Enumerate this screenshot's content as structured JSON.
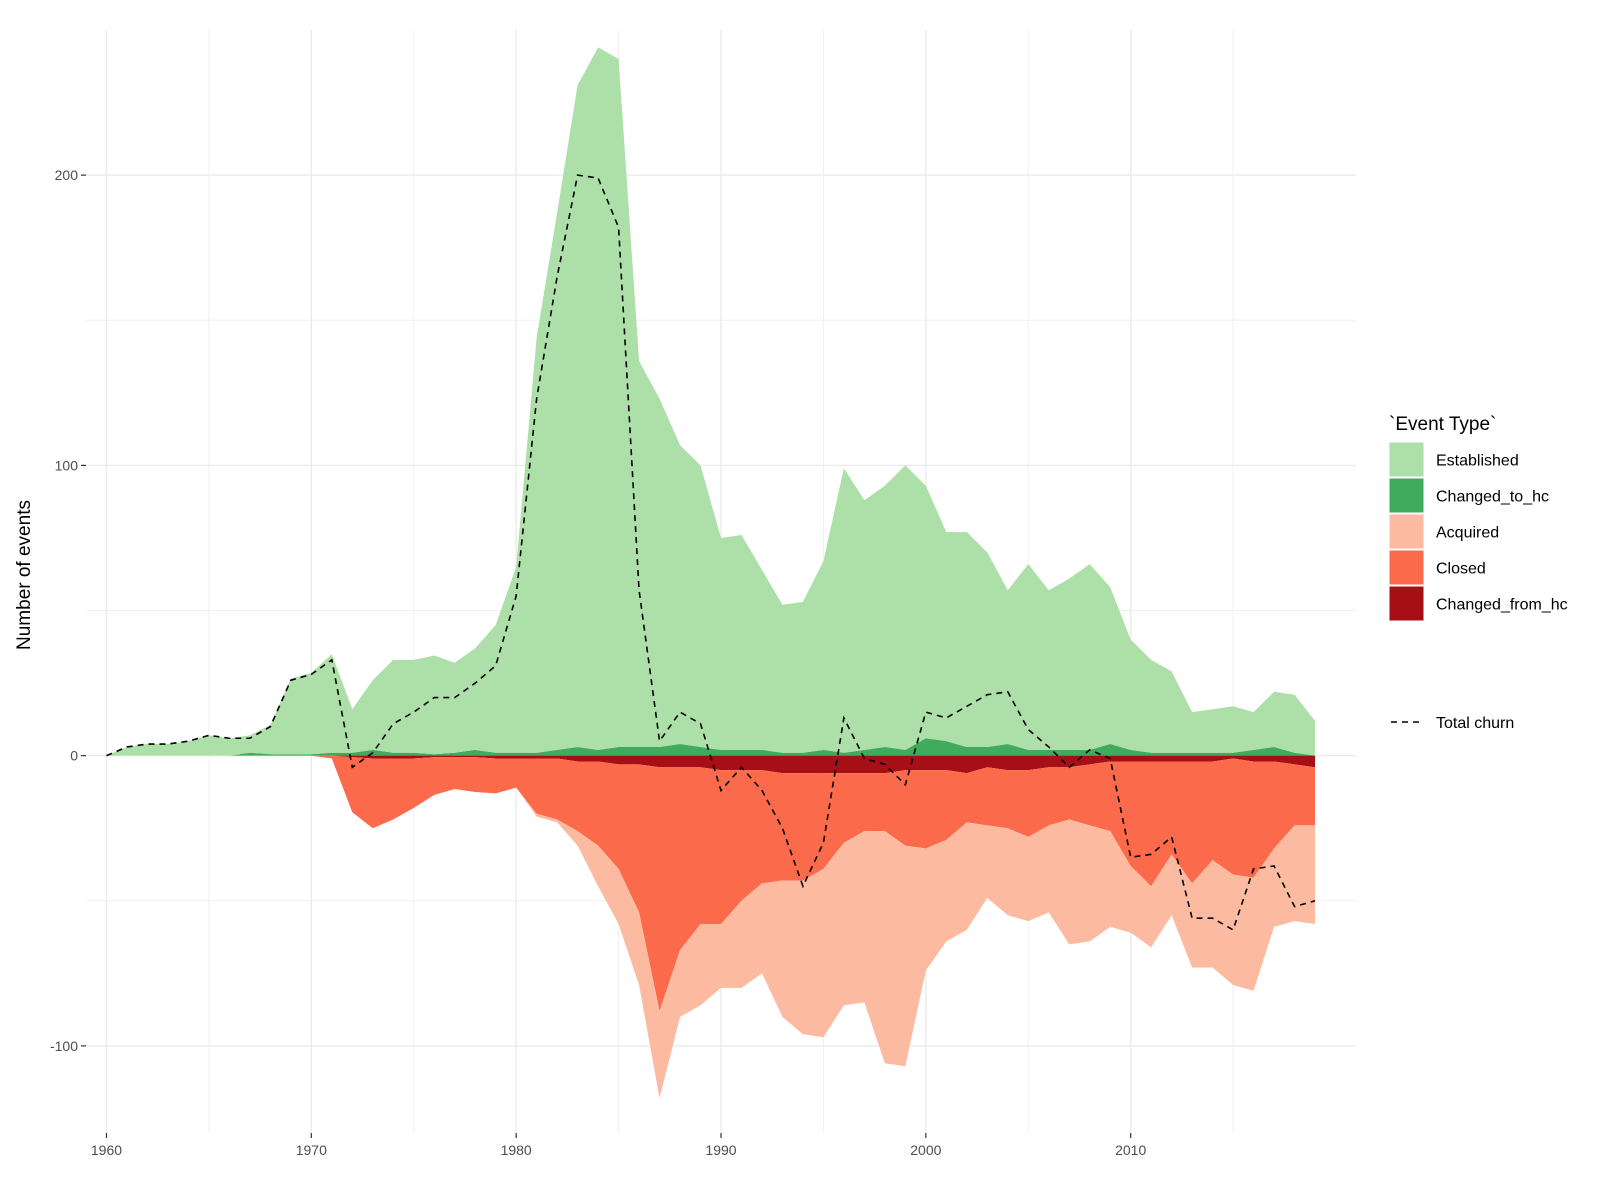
{
  "chart_data": {
    "type": "area",
    "title": "",
    "xlabel": "",
    "ylabel": "Number of events",
    "xlim": [
      1959,
      2021
    ],
    "ylim": [
      -130,
      250
    ],
    "x_ticks": [
      1960,
      1970,
      1980,
      1990,
      2000,
      2010
    ],
    "y_ticks": [
      -100,
      0,
      100,
      200
    ],
    "grid": true,
    "legend_position": "right",
    "legend_title": "`Event Type`",
    "x": [
      1960,
      1961,
      1962,
      1963,
      1964,
      1965,
      1966,
      1967,
      1968,
      1969,
      1970,
      1971,
      1972,
      1973,
      1974,
      1975,
      1976,
      1977,
      1978,
      1979,
      1980,
      1981,
      1982,
      1983,
      1984,
      1985,
      1986,
      1987,
      1988,
      1989,
      1990,
      1991,
      1992,
      1993,
      1994,
      1995,
      1996,
      1997,
      1998,
      1999,
      2000,
      2001,
      2002,
      2003,
      2004,
      2005,
      2006,
      2007,
      2008,
      2009,
      2010,
      2011,
      2012,
      2013,
      2014,
      2015,
      2016,
      2017,
      2018,
      2019
    ],
    "series": [
      {
        "name": "Changed_to_hc",
        "color": "#41ab5d",
        "direction": "positive",
        "values": [
          0,
          0,
          0,
          0,
          0,
          0,
          0,
          1,
          0.5,
          0.5,
          0.5,
          1,
          1,
          2,
          1,
          1,
          0.5,
          1,
          2,
          1,
          1,
          1,
          2,
          3,
          2,
          3,
          3,
          3,
          4,
          3,
          2,
          2,
          2,
          1,
          1,
          2,
          1,
          2,
          3,
          2,
          6,
          5,
          3,
          3,
          4,
          2,
          2,
          2,
          2,
          4,
          2,
          1,
          1,
          1,
          1,
          1,
          2,
          3,
          1,
          0
        ]
      },
      {
        "name": "Established",
        "color": "#addfa8",
        "direction": "positive",
        "values": [
          0,
          3,
          4,
          4,
          5,
          7,
          6,
          6,
          10,
          26,
          28,
          34,
          15,
          24,
          32,
          32,
          34,
          31,
          35,
          44,
          64,
          143,
          185,
          228,
          242,
          237,
          133,
          120,
          103,
          97,
          73,
          74,
          62,
          51,
          52,
          65,
          98,
          86,
          90,
          98,
          87,
          72,
          74,
          67,
          53,
          64,
          55,
          59,
          64,
          54,
          38,
          32,
          28,
          14,
          15,
          16,
          13,
          19,
          20,
          12
        ]
      },
      {
        "name": "Changed_from_hc",
        "color": "#a50f15",
        "direction": "negative",
        "values": [
          0,
          0,
          0,
          0,
          0,
          0,
          0,
          0,
          0,
          0,
          0,
          0,
          0.5,
          1,
          1,
          1,
          0.5,
          0.5,
          0.5,
          1,
          1,
          1,
          1,
          2,
          2,
          3,
          3,
          4,
          4,
          4,
          5,
          5,
          5,
          6,
          6,
          6,
          6,
          6,
          6,
          5,
          5,
          5,
          6,
          4,
          5,
          5,
          4,
          4,
          3,
          2,
          2,
          2,
          2,
          2,
          2,
          1,
          2,
          2,
          3,
          4
        ]
      },
      {
        "name": "Closed",
        "color": "#fb6a4a",
        "direction": "negative",
        "values": [
          0,
          0,
          0,
          0,
          0,
          0,
          0,
          0,
          0,
          0,
          0,
          1,
          19,
          24,
          21,
          17,
          13,
          11,
          12,
          12,
          10,
          19,
          21,
          24,
          29,
          36,
          51,
          84,
          63,
          54,
          53,
          45,
          39,
          37,
          37,
          33,
          24,
          20,
          20,
          26,
          27,
          24,
          17,
          20,
          20,
          23,
          20,
          18,
          21,
          24,
          36,
          43,
          32,
          42,
          34,
          40,
          40,
          30,
          21,
          20
        ]
      },
      {
        "name": "Acquired",
        "color": "#fcbba1",
        "direction": "negative",
        "values": [
          0,
          0,
          0,
          0,
          0,
          0,
          0,
          0,
          0,
          0,
          0,
          0,
          0,
          0,
          0,
          0,
          0,
          0,
          0,
          0,
          0,
          1,
          1,
          5,
          14,
          19,
          25,
          30,
          23,
          28,
          22,
          30,
          31,
          47,
          53,
          58,
          56,
          59,
          80,
          76,
          42,
          35,
          37,
          25,
          30,
          29,
          30,
          43,
          40,
          33,
          23,
          21,
          21,
          29,
          37,
          38,
          39,
          27,
          33,
          34
        ]
      }
    ],
    "line_series": {
      "name": "Total churn",
      "style": "dashed",
      "color": "#000000",
      "values": [
        0,
        3,
        4,
        4,
        5,
        7,
        6,
        6,
        10,
        26,
        28,
        33,
        -4,
        1,
        11,
        15,
        20,
        20,
        25,
        31,
        55,
        123,
        165,
        200,
        199,
        182,
        57,
        5,
        15,
        11,
        -12,
        -4,
        -12,
        -25,
        -45,
        -30,
        13,
        -1,
        -3,
        -10,
        15,
        13,
        17,
        21,
        22,
        9,
        3,
        -4,
        2,
        -1,
        -35,
        -34,
        -28,
        -56,
        -56,
        -60,
        -39,
        -38,
        -52,
        -50
      ]
    }
  }
}
